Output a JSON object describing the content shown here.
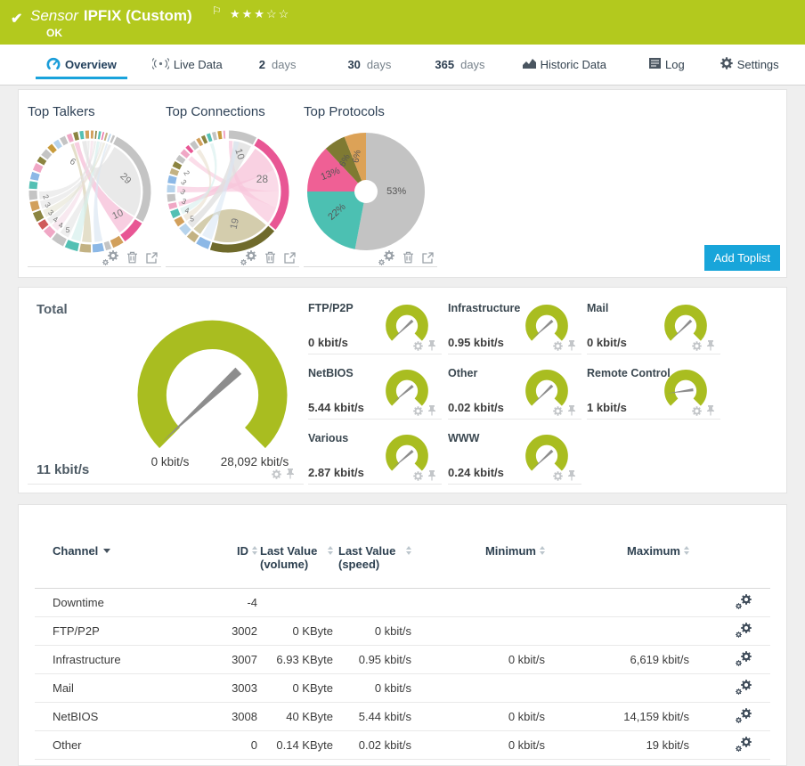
{
  "header": {
    "status_icon": "✔",
    "kind": "Sensor",
    "title": "IPFIX (Custom)",
    "flag": "⚐",
    "stars": "★★★☆☆",
    "status": "OK"
  },
  "tabs": {
    "overview": "Overview",
    "live": "Live Data",
    "d2_num": "2",
    "d2_unit": "days",
    "d30_num": "30",
    "d30_unit": "days",
    "d365_num": "365",
    "d365_unit": "days",
    "historic": "Historic Data",
    "log": "Log",
    "settings": "Settings"
  },
  "toplists": {
    "talkers_title": "Top Talkers",
    "connections_title": "Top Connections",
    "protocols_title": "Top Protocols",
    "add_button": "Add Toplist"
  },
  "gauges": {
    "total_label": "Total",
    "total_value": "11 kbit/s",
    "total_min": "0 kbit/s",
    "total_max": "28,092 kbit/s",
    "total_needle": -133,
    "channels": [
      {
        "label": "FTP/P2P",
        "value": "0 kbit/s",
        "needle": -133
      },
      {
        "label": "Infrastructure",
        "value": "0.95 kbit/s",
        "needle": -132
      },
      {
        "label": "Mail",
        "value": "0 kbit/s",
        "needle": -134
      },
      {
        "label": "NetBIOS",
        "value": "5.44 kbit/s",
        "needle": -130
      },
      {
        "label": "Other",
        "value": "0.02 kbit/s",
        "needle": -134
      },
      {
        "label": "Remote Control",
        "value": "1 kbit/s",
        "needle": -98
      },
      {
        "label": "Various",
        "value": "2.87 kbit/s",
        "needle": -131
      },
      {
        "label": "WWW",
        "value": "0.24 kbit/s",
        "needle": -133
      }
    ]
  },
  "table": {
    "headers": {
      "channel": "Channel",
      "id": "ID",
      "vol": "Last Value (volume)",
      "speed": "Last Value (speed)",
      "min": "Minimum",
      "max": "Maximum"
    },
    "rows": [
      {
        "channel": "Downtime",
        "id": "-4",
        "vol": "",
        "speed": "",
        "min": "",
        "max": ""
      },
      {
        "channel": "FTP/P2P",
        "id": "3002",
        "vol": "0 KByte",
        "speed": "0 kbit/s",
        "min": "",
        "max": ""
      },
      {
        "channel": "Infrastructure",
        "id": "3007",
        "vol": "6.93 KByte",
        "speed": "0.95 kbit/s",
        "min": "0 kbit/s",
        "max": "6,619 kbit/s"
      },
      {
        "channel": "Mail",
        "id": "3003",
        "vol": "0 KByte",
        "speed": "0 kbit/s",
        "min": "",
        "max": ""
      },
      {
        "channel": "NetBIOS",
        "id": "3008",
        "vol": "40 KByte",
        "speed": "5.44 kbit/s",
        "min": "0 kbit/s",
        "max": "14,159 kbit/s"
      },
      {
        "channel": "Other",
        "id": "0",
        "vol": "0.14 KByte",
        "speed": "0.02 kbit/s",
        "min": "0 kbit/s",
        "max": "19 kbit/s"
      }
    ]
  },
  "chart_data": [
    {
      "type": "chord",
      "title": "Top Talkers",
      "segments": [
        [
          1.2,
          "#d2a05c"
        ],
        [
          0.9,
          "#8b8440"
        ],
        [
          1.1,
          "#54c0b4"
        ],
        [
          0.8,
          "#e85694"
        ],
        [
          1.0,
          "#c3b283"
        ],
        [
          0.9,
          "#b6d3ec"
        ],
        [
          1.1,
          "#c4c4c4"
        ],
        [
          26.5,
          "#c4c4c4"
        ],
        [
          7,
          "#e85694"
        ],
        [
          3.5,
          "#d2a05c"
        ],
        [
          2,
          "#c4c4c4"
        ],
        [
          3.5,
          "#8cb8e6"
        ],
        [
          3.5,
          "#c3b283"
        ],
        [
          4,
          "#54c0b4"
        ],
        [
          4,
          "#c4c4c4"
        ],
        [
          3,
          "#f0a7c5"
        ],
        [
          2.5,
          "#cf5b5b"
        ],
        [
          3,
          "#8b8440"
        ],
        [
          3,
          "#d2a05c"
        ],
        [
          3,
          "#c4c4c4"
        ],
        [
          2.5,
          "#54c0b4"
        ],
        [
          2.5,
          "#8cb8e6"
        ],
        [
          2.5,
          "#f0a7c5"
        ],
        [
          2,
          "#8b8440"
        ],
        [
          2.5,
          "#c4c4c4"
        ],
        [
          2,
          "#c89b3c"
        ],
        [
          2,
          "#b6d3ec"
        ],
        [
          2,
          "#c4c4c4"
        ],
        [
          1.8,
          "#f0a7c5"
        ],
        [
          1.7,
          "#8b8440"
        ],
        [
          1.5,
          "#54c0b4"
        ],
        [
          1.5,
          "#d2a05c"
        ]
      ],
      "ribbons": [
        [
          8,
          33,
          97.5,
          99,
          "#dfdfdf",
          0.7
        ],
        [
          33.5,
          40,
          95,
          96.5,
          "#f5bdd7",
          0.75
        ],
        [
          49.5,
          52.5,
          93.8,
          94.8,
          "#d9d2b4",
          0.7
        ],
        [
          46,
          48.5,
          5.2,
          5.8,
          "#dbe7f2",
          0.7
        ],
        [
          53,
          56,
          2.2,
          3.1,
          "#d6efec",
          0.7
        ],
        [
          57,
          60,
          6,
          6.9,
          "#e2e2e2",
          0.6
        ],
        [
          61,
          63.5,
          0.2,
          1.1,
          "#f2d3e2",
          0.5
        ],
        [
          64,
          66,
          99.2,
          99.9,
          "#e2e2e2",
          0.6
        ],
        [
          66.5,
          69,
          4.1,
          4.9,
          "#e5e2d2",
          0.6
        ],
        [
          69.5,
          72,
          3.3,
          3.9,
          "#e2e2e2",
          0.6
        ],
        [
          72.5,
          75,
          1.3,
          2,
          "#e2e2e2",
          0.6
        ]
      ],
      "labels": [
        {
          "v": "29",
          "p": 20,
          "r": 0.62,
          "rot": 45,
          "s": 11
        },
        {
          "v": "10",
          "p": 36.5,
          "r": 0.68,
          "rot": -25,
          "s": 11
        },
        {
          "v": "6",
          "p": 90.5,
          "r": 0.58,
          "rot": 30,
          "s": 10
        },
        {
          "v": "2",
          "p": 72.8,
          "r": 0.82,
          "rot": 65,
          "s": 8.5
        },
        {
          "v": "3",
          "p": 69.8,
          "r": 0.82,
          "rot": 52,
          "s": 8.5
        },
        {
          "v": "3",
          "p": 66.8,
          "r": 0.82,
          "rot": 40,
          "s": 8.5
        },
        {
          "v": "4",
          "p": 63.8,
          "r": 0.82,
          "rot": 28,
          "s": 8.5
        },
        {
          "v": "4",
          "p": 61,
          "r": 0.82,
          "rot": 15,
          "s": 8.5
        },
        {
          "v": "5",
          "p": 58,
          "r": 0.82,
          "rot": 5,
          "s": 8.5
        }
      ]
    },
    {
      "type": "chord",
      "title": "Top Connections",
      "segments": [
        [
          8,
          "#c4c4c4"
        ],
        [
          28,
          "#e85694"
        ],
        [
          19,
          "#6f6a2b"
        ],
        [
          4,
          "#8cb8e6"
        ],
        [
          3,
          "#c3b283"
        ],
        [
          3,
          "#b6d3ec"
        ],
        [
          2.5,
          "#d2a05c"
        ],
        [
          2.5,
          "#54c0b4"
        ],
        [
          2,
          "#f0a7c5"
        ],
        [
          2.5,
          "#c4c4c4"
        ],
        [
          2.5,
          "#b6d3ec"
        ],
        [
          2.5,
          "#8cb8e6"
        ],
        [
          2,
          "#c3b283"
        ],
        [
          2,
          "#8b8440"
        ],
        [
          2,
          "#c4c4c4"
        ],
        [
          2,
          "#f0a7c5"
        ],
        [
          1.5,
          "#e85694"
        ],
        [
          2,
          "#c4c4c4"
        ],
        [
          1.5,
          "#d2a05c"
        ],
        [
          1.5,
          "#8b8440"
        ],
        [
          1.5,
          "#54c0b4"
        ],
        [
          1.5,
          "#c4c4c4"
        ],
        [
          1.5,
          "#c89b3c"
        ],
        [
          1,
          "#f0a7c5"
        ],
        [
          0.5,
          "#e4d9b8"
        ]
      ],
      "ribbons": [
        [
          9,
          18,
          70.3,
          71.7,
          "#f8c6db",
          0.8
        ],
        [
          18,
          25,
          74.7,
          76.7,
          "#f8c6db",
          0.65
        ],
        [
          25,
          30,
          85.7,
          87.3,
          "#f8c6db",
          0.6
        ],
        [
          30,
          35.5,
          0.3,
          1.5,
          "#f8c6db",
          0.7
        ],
        [
          36.5,
          54.5,
          59.2,
          61.8,
          "#cfc8a4",
          0.9
        ],
        [
          1.8,
          7.5,
          62.3,
          64.7,
          "#e0e0e0",
          0.8
        ],
        [
          55.2,
          58.5,
          2,
          3.5,
          "#d9e6f4",
          0.6
        ],
        [
          65.2,
          67.2,
          89.3,
          90.7,
          "#e8ddcc",
          0.6
        ],
        [
          67.6,
          69.7,
          94.2,
          95.3,
          "#d6efec",
          0.6
        ]
      ],
      "labels": [
        {
          "v": "10",
          "p": 3.8,
          "r": 0.66,
          "rot": 72,
          "s": 11
        },
        {
          "v": "28",
          "p": 21,
          "r": 0.62,
          "rot": 0,
          "s": 12
        },
        {
          "v": "19",
          "p": 45.5,
          "r": 0.6,
          "rot": -78,
          "s": 11
        },
        {
          "v": "2",
          "p": 81,
          "r": 0.82,
          "rot": 60,
          "s": 8.5
        },
        {
          "v": "3",
          "p": 77.6,
          "r": 0.82,
          "rot": 48,
          "s": 8.5
        },
        {
          "v": "3",
          "p": 74.2,
          "r": 0.82,
          "rot": 37,
          "s": 8.5
        },
        {
          "v": "3",
          "p": 70.8,
          "r": 0.82,
          "rot": 25,
          "s": 8.5
        },
        {
          "v": "4",
          "p": 67.4,
          "r": 0.82,
          "rot": 12,
          "s": 8.5
        },
        {
          "v": "5",
          "p": 64,
          "r": 0.82,
          "rot": 0,
          "s": 8.5
        }
      ]
    },
    {
      "type": "pie",
      "title": "Top Protocols",
      "values": [
        53,
        22,
        13,
        6,
        6
      ],
      "colors": [
        "#c3c3c3",
        "#4cc0b2",
        "#ef6095",
        "#7f7a32",
        "#dca257"
      ],
      "labels": [
        {
          "t": "53%",
          "p": 26.5,
          "r": 0.52,
          "rot": 0,
          "s": 11
        },
        {
          "t": "22%",
          "p": 64,
          "r": 0.6,
          "rot": -42,
          "s": 11
        },
        {
          "t": "13%",
          "p": 81.5,
          "r": 0.64,
          "rot": -22,
          "s": 11
        },
        {
          "t": "6%",
          "p": 91,
          "r": 0.6,
          "rot": -62,
          "s": 10
        },
        {
          "t": "6%",
          "p": 97,
          "r": 0.6,
          "rot": -80,
          "s": 10
        }
      ]
    },
    {
      "type": "gauge",
      "title": "Total",
      "value": 11,
      "min": 0,
      "max": 28092,
      "unit": "kbit/s"
    }
  ],
  "theme": {
    "status_green": "#b3c91e",
    "gauge_green": "#a9bd20",
    "accent_blue": "#18a5da",
    "tab_underline": "#1aa3dc"
  }
}
